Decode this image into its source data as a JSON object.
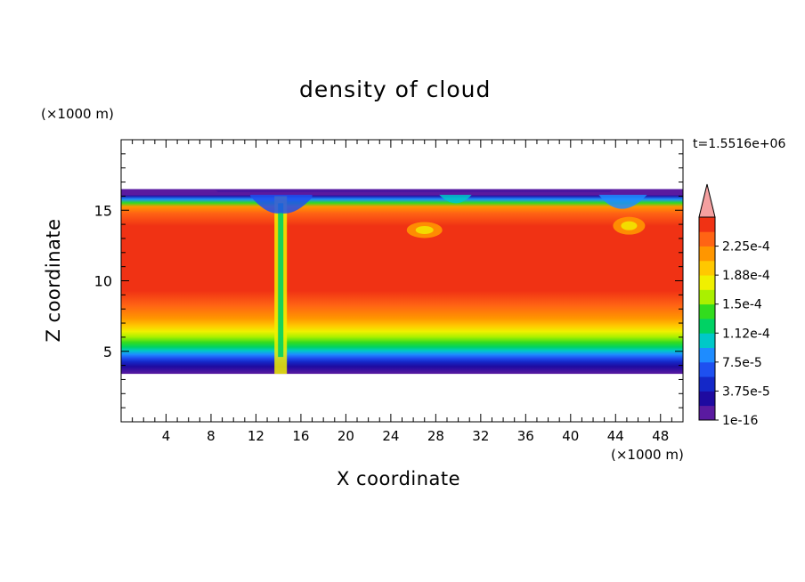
{
  "chart_data": {
    "type": "heatmap",
    "title": "density of cloud",
    "xlabel": "X coordinate",
    "ylabel": "Z coordinate",
    "x_units": "(×1000 m)",
    "y_units": "(×1000 m)",
    "time_label": "t=1.5516e+06",
    "xlim": [
      0,
      50
    ],
    "ylim": [
      0,
      20
    ],
    "x_ticks": [
      4,
      8,
      12,
      16,
      20,
      24,
      28,
      32,
      36,
      40,
      44,
      48
    ],
    "x_tick_labels": [
      "4",
      "8",
      "12",
      "16",
      "20",
      "24",
      "28",
      "32",
      "36",
      "40",
      "44",
      "48"
    ],
    "y_ticks": [
      5,
      10,
      15
    ],
    "y_tick_labels": [
      "5",
      "10",
      "15"
    ],
    "cloud_base_z": 3.4,
    "cloud_top_z": 16.5,
    "colorbar": {
      "levels": [
        1e-16,
        1.875e-05,
        3.75e-05,
        5.625e-05,
        7.5e-05,
        9.375e-05,
        0.0001125,
        0.00013125,
        0.00015,
        0.00016875,
        0.0001875,
        0.00020625,
        0.000225,
        0.00024375
      ],
      "labels": [
        "2.25e-4",
        "1.88e-4",
        "1.5e-4",
        "1.12e-4",
        "7.5e-5",
        "3.75e-5",
        "1e-16"
      ],
      "colors": [
        "#5a1aa0",
        "#1e0aa0",
        "#1428c8",
        "#1e50f0",
        "#1e8cff",
        "#00c8c8",
        "#00d264",
        "#32dc1e",
        "#aaf000",
        "#f0f000",
        "#ffc800",
        "#ff9600",
        "#ff6414",
        "#f03214"
      ],
      "extend_color": "#f5a0a0"
    }
  }
}
